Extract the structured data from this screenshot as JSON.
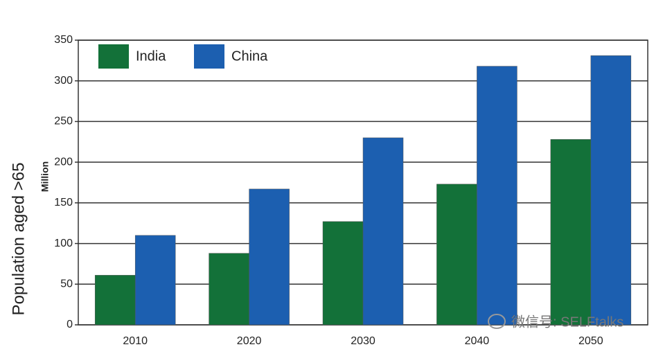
{
  "chart_data": {
    "type": "bar",
    "y_axis_label": "Million",
    "side_label": "Population aged >65",
    "watermark": "微信号: SELFtalks",
    "categories": [
      "2010",
      "2020",
      "2030",
      "2040",
      "2050"
    ],
    "series": [
      {
        "name": "India",
        "color": "#137139",
        "values": [
          61,
          88,
          127,
          173,
          228
        ]
      },
      {
        "name": "China",
        "color": "#1c5fb0",
        "values": [
          110,
          167,
          230,
          318,
          331
        ]
      }
    ],
    "ylim": [
      0,
      350
    ],
    "yticks": [
      0,
      50,
      100,
      150,
      200,
      250,
      300,
      350
    ],
    "grid": true,
    "legend": "top-left"
  }
}
